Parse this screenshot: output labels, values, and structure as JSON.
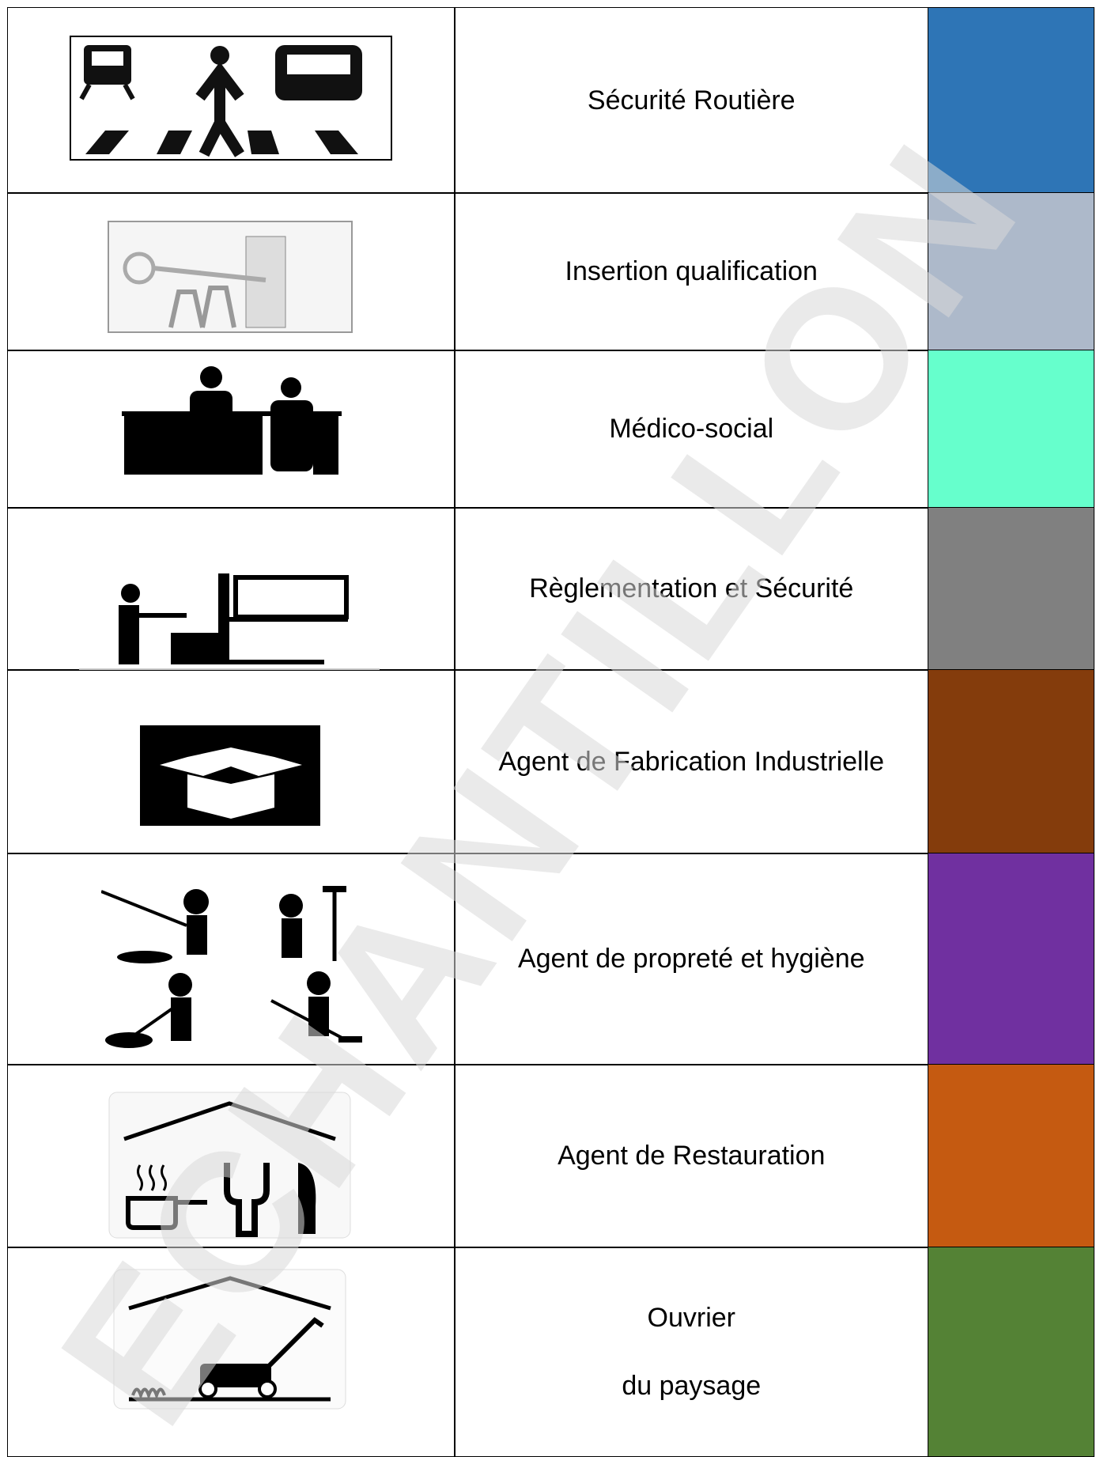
{
  "watermark": "ECHANTILLON",
  "table": {
    "rows": [
      {
        "label": [
          "Sécurité Routière"
        ],
        "color": "#2e75b6"
      },
      {
        "label": [
          "Insertion qualification"
        ],
        "color": "#adb9ca"
      },
      {
        "label": [
          "Médico-social"
        ],
        "color": "#66ffcc"
      },
      {
        "label": [
          "Règlementation et Sécurité"
        ],
        "color": "#808080"
      },
      {
        "label": [
          "Agent de Fabrication Industrielle"
        ],
        "color": "#843c0c"
      },
      {
        "label": [
          "Agent de propreté et hygiène"
        ],
        "color": "#7030a0"
      },
      {
        "label": [
          "Agent de Restauration"
        ],
        "color": "#c55a11"
      },
      {
        "label": [
          "Ouvrier",
          "du paysage"
        ],
        "color": "#548235"
      }
    ]
  }
}
